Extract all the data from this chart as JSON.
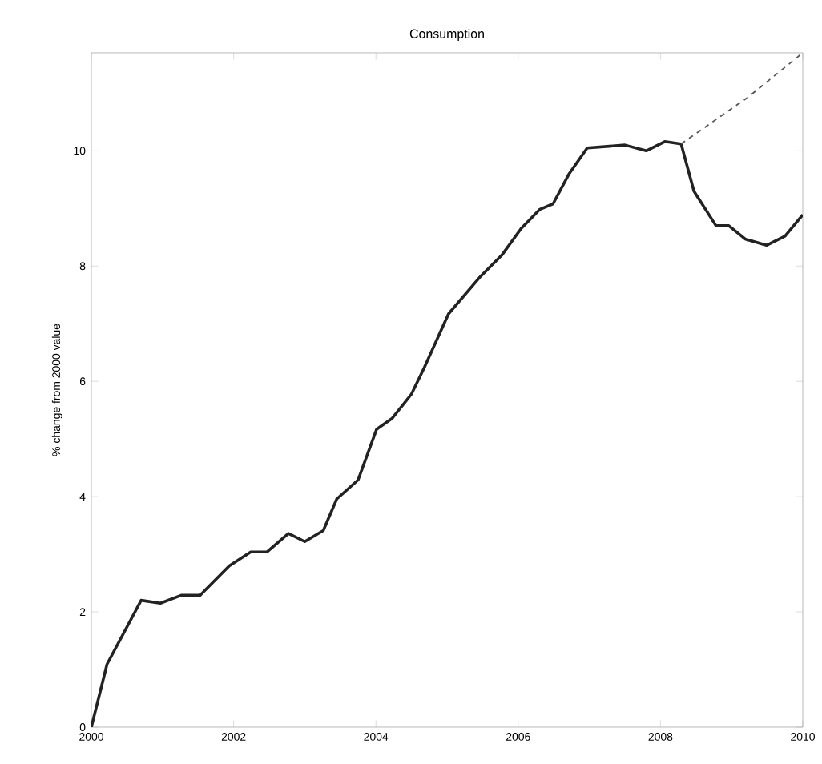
{
  "chart_data": {
    "type": "line",
    "title": "Consumption",
    "ylabel": "% change from 2000 value",
    "xlim": [
      2000,
      2010
    ],
    "ylim": [
      0,
      11.7
    ],
    "xticks": [
      2000,
      2002,
      2004,
      2006,
      2008,
      2010
    ],
    "yticks": [
      0,
      2,
      4,
      6,
      8,
      10
    ],
    "grid": false,
    "series": [
      {
        "color": "#222222",
        "line_style": "solid",
        "x": [
          2000,
          2000.22,
          2000.7,
          2000.97,
          2001.27,
          2001.53,
          2001.94,
          2002.24,
          2002.47,
          2002.77,
          2003.0,
          2003.26,
          2003.45,
          2003.75,
          2004.01,
          2004.23,
          2004.5,
          2004.68,
          2005.02,
          2005.47,
          2005.77,
          2006.04,
          2006.3,
          2006.49,
          2006.71,
          2006.97,
          2007.5,
          2007.8,
          2008.06,
          2008.29,
          2008.47,
          2008.78,
          2008.96,
          2009.19,
          2009.49,
          2009.75,
          2010.0
        ],
        "values": [
          0,
          1.09,
          2.2,
          2.15,
          2.29,
          2.29,
          2.8,
          3.04,
          3.04,
          3.36,
          3.22,
          3.41,
          3.96,
          4.29,
          5.17,
          5.36,
          5.78,
          6.24,
          7.17,
          7.82,
          8.19,
          8.65,
          8.98,
          9.08,
          9.59,
          10.05,
          10.1,
          10.0,
          10.16,
          10.12,
          9.3,
          8.7,
          8.7,
          8.47,
          8.36,
          8.52,
          8.89
        ]
      },
      {
        "color": "#555555",
        "line_style": "dashed",
        "x": [
          2008.29,
          2009.23,
          2010.0
        ],
        "values": [
          10.12,
          10.93,
          11.7
        ]
      }
    ]
  }
}
